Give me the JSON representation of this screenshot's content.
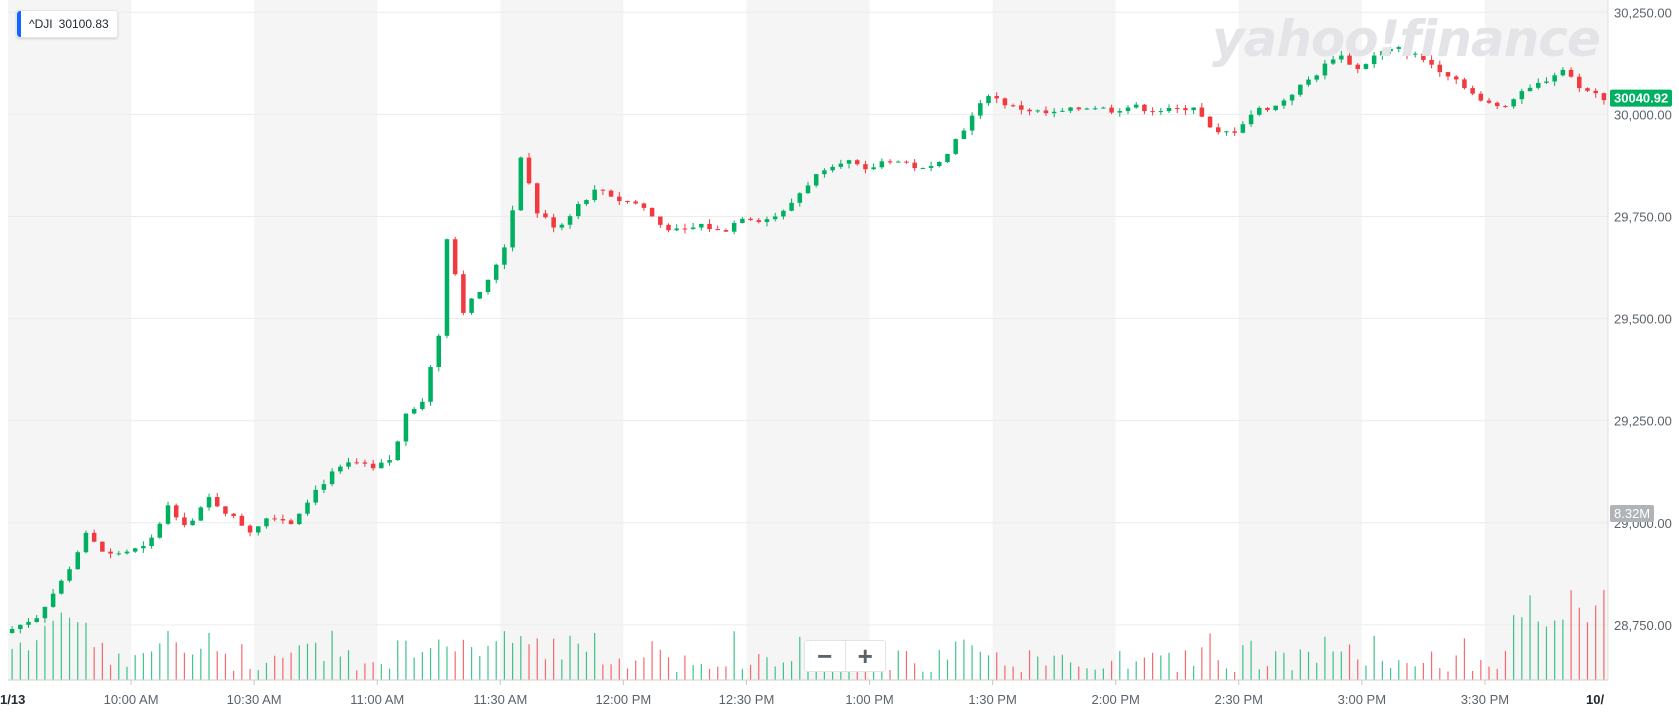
{
  "legend": {
    "symbol": "^DJI",
    "value": "30100.83",
    "accent": "#0f69ff"
  },
  "watermark": "yahoo!finance",
  "price_badge": {
    "value": "30040.92",
    "color": "#00b061"
  },
  "volume_badge": {
    "value": "8.32M",
    "color": "#b0b3b8"
  },
  "zoom": {
    "minus": "−",
    "plus": "+"
  },
  "colors": {
    "up": "#00b061",
    "down": "#f2393f",
    "band": "#f5f5f5"
  },
  "chart_data": {
    "type": "candlestick",
    "x_ticks": [
      "10:00 AM",
      "10:30 AM",
      "11:00 AM",
      "11:30 AM",
      "12:00 PM",
      "12:30 PM",
      "1:00 PM",
      "1:30 PM",
      "2:00 PM",
      "2:30 PM",
      "3:00 PM",
      "3:30 PM"
    ],
    "x_edge_left": "1/13",
    "x_edge_right": "10/",
    "y_ticks": [
      "28,750.00",
      "29,000.00",
      "29,250.00",
      "29,500.00",
      "29,750.00",
      "30,000.00",
      "30,250.00"
    ],
    "ylim": [
      28615,
      30280
    ],
    "grid": true,
    "price_path": [
      [
        "09:30",
        28730
      ],
      [
        "09:38",
        28770
      ],
      [
        "09:45",
        28870
      ],
      [
        "09:50",
        28970
      ],
      [
        "09:55",
        28920
      ],
      [
        "10:05",
        28940
      ],
      [
        "10:10",
        29040
      ],
      [
        "10:15",
        28990
      ],
      [
        "10:20",
        29060
      ],
      [
        "10:25",
        29020
      ],
      [
        "10:30",
        28980
      ],
      [
        "10:35",
        29020
      ],
      [
        "10:40",
        29000
      ],
      [
        "10:45",
        29070
      ],
      [
        "10:50",
        29120
      ],
      [
        "10:55",
        29150
      ],
      [
        "11:00",
        29130
      ],
      [
        "11:05",
        29160
      ],
      [
        "11:08",
        29270
      ],
      [
        "11:12",
        29300
      ],
      [
        "11:16",
        29460
      ],
      [
        "11:18",
        29700
      ],
      [
        "11:22",
        29520
      ],
      [
        "11:28",
        29590
      ],
      [
        "11:33",
        29700
      ],
      [
        "11:36",
        29900
      ],
      [
        "11:40",
        29760
      ],
      [
        "11:45",
        29720
      ],
      [
        "11:50",
        29780
      ],
      [
        "11:55",
        29820
      ],
      [
        "12:00",
        29790
      ],
      [
        "12:05",
        29780
      ],
      [
        "12:10",
        29730
      ],
      [
        "12:15",
        29710
      ],
      [
        "12:20",
        29730
      ],
      [
        "12:25",
        29710
      ],
      [
        "12:30",
        29750
      ],
      [
        "12:35",
        29740
      ],
      [
        "12:40",
        29760
      ],
      [
        "12:45",
        29820
      ],
      [
        "12:50",
        29870
      ],
      [
        "12:55",
        29890
      ],
      [
        "13:00",
        29860
      ],
      [
        "13:05",
        29890
      ],
      [
        "13:10",
        29880
      ],
      [
        "13:15",
        29860
      ],
      [
        "13:20",
        29910
      ],
      [
        "13:25",
        29980
      ],
      [
        "13:30",
        30050
      ],
      [
        "13:35",
        30020
      ],
      [
        "13:40",
        30010
      ],
      [
        "13:45",
        30000
      ],
      [
        "13:50",
        30010
      ],
      [
        "13:55",
        30020
      ],
      [
        "14:00",
        30010
      ],
      [
        "14:05",
        30020
      ],
      [
        "14:10",
        30010
      ],
      [
        "14:15",
        30010
      ],
      [
        "14:20",
        30020
      ],
      [
        "14:25",
        29950
      ],
      [
        "14:30",
        29960
      ],
      [
        "14:35",
        30010
      ],
      [
        "14:40",
        30020
      ],
      [
        "14:45",
        30060
      ],
      [
        "14:50",
        30100
      ],
      [
        "14:55",
        30150
      ],
      [
        "15:00",
        30110
      ],
      [
        "15:05",
        30150
      ],
      [
        "15:10",
        30160
      ],
      [
        "15:15",
        30140
      ],
      [
        "15:20",
        30110
      ],
      [
        "15:25",
        30080
      ],
      [
        "15:30",
        30030
      ],
      [
        "15:35",
        30020
      ],
      [
        "15:40",
        30050
      ],
      [
        "15:45",
        30080
      ],
      [
        "15:50",
        30110
      ],
      [
        "15:55",
        30060
      ],
      [
        "16:00",
        30041
      ]
    ],
    "volume": {
      "unit": "M",
      "last": 8.32
    }
  }
}
